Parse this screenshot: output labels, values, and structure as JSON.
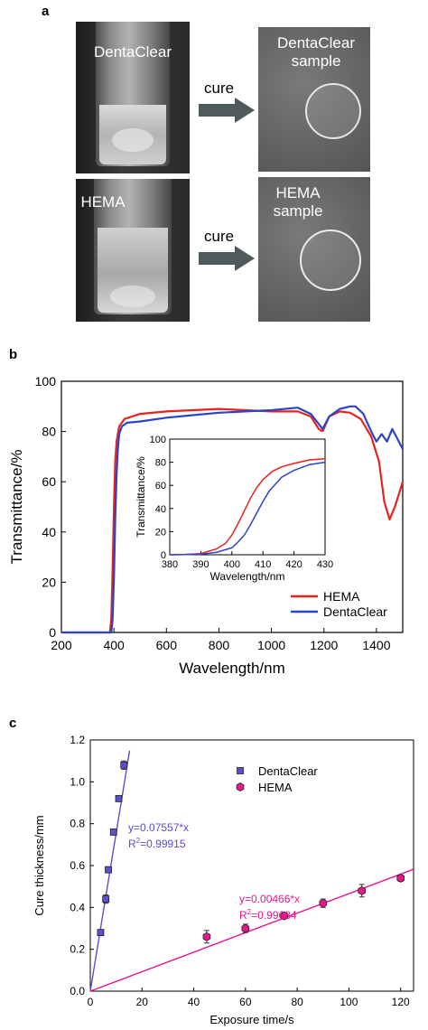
{
  "panel_a": {
    "letter": "a",
    "top_left_label": "DentaClear",
    "top_right_label_line1": "DentaClear",
    "top_right_label_line2": "sample",
    "bottom_left_label": "HEMA",
    "bottom_right_label_line1": "HEMA",
    "bottom_right_label_line2": "sample",
    "arrow_label_top": "cure",
    "arrow_label_bottom": "cure",
    "colors": {
      "arrow": "#4f5a5c",
      "photo_bg_vial": "#2b2b2b",
      "photo_bg_fabric": "#6a6a6a"
    }
  },
  "panel_b": {
    "letter": "b"
  },
  "panel_c": {
    "letter": "c"
  },
  "chart_data": [
    {
      "type": "line",
      "title": "",
      "xlabel": "Wavelength/nm",
      "ylabel": "Transmittance/%",
      "xlim": [
        200,
        1500
      ],
      "ylim": [
        0,
        100
      ],
      "xticks": [
        200,
        400,
        600,
        800,
        1000,
        1200,
        1400
      ],
      "yticks": [
        0,
        20,
        40,
        60,
        80,
        100
      ],
      "legend": "bottom-right",
      "series": [
        {
          "name": "HEMA",
          "color": "#e8231d",
          "x": [
            200,
            385,
            390,
            395,
            400,
            405,
            410,
            420,
            440,
            500,
            600,
            700,
            800,
            900,
            1000,
            1100,
            1150,
            1180,
            1195,
            1220,
            1260,
            1300,
            1340,
            1380,
            1410,
            1430,
            1450,
            1470,
            1500
          ],
          "y": [
            0,
            0,
            5,
            25,
            50,
            68,
            76,
            82,
            85,
            87,
            88,
            88.5,
            89,
            88.5,
            88,
            88,
            86,
            81,
            80,
            86,
            88,
            87.5,
            85,
            78,
            68,
            52,
            45,
            50,
            60
          ]
        },
        {
          "name": "DentaClear",
          "color": "#2a45c9",
          "x": [
            200,
            390,
            395,
            400,
            405,
            410,
            415,
            420,
            430,
            450,
            500,
            600,
            700,
            800,
            900,
            1000,
            1100,
            1150,
            1180,
            1195,
            1220,
            1260,
            1300,
            1320,
            1350,
            1380,
            1400,
            1420,
            1440,
            1460,
            1480,
            1500
          ],
          "y": [
            0,
            0,
            5,
            22,
            45,
            63,
            73,
            79,
            82,
            83.5,
            84,
            85.5,
            86.5,
            87.5,
            88,
            88.5,
            89.5,
            87,
            83,
            81,
            86,
            89,
            90,
            90,
            87,
            80,
            76,
            79,
            76,
            81,
            77,
            73
          ]
        }
      ]
    },
    {
      "type": "line",
      "title": "",
      "xlabel": "Wavelength/nm",
      "ylabel": "Transmittance/%",
      "xlim": [
        380,
        430
      ],
      "ylim": [
        0,
        100
      ],
      "xticks": [
        380,
        390,
        400,
        410,
        420,
        430
      ],
      "yticks": [
        0,
        20,
        40,
        60,
        80,
        100
      ],
      "series": [
        {
          "name": "HEMA",
          "color": "#e8231d",
          "x": [
            380,
            385,
            390,
            395,
            398,
            400,
            402,
            404,
            406,
            408,
            410,
            413,
            416,
            420,
            425,
            430
          ],
          "y": [
            0,
            0.3,
            1,
            5,
            10,
            17,
            27,
            38,
            49,
            58,
            65,
            72,
            76,
            79,
            82,
            83
          ]
        },
        {
          "name": "DentaClear",
          "color": "#2a45c9",
          "x": [
            380,
            385,
            390,
            395,
            400,
            402,
            404,
            406,
            408,
            410,
            412,
            414,
            416,
            420,
            425,
            430
          ],
          "y": [
            0,
            0.2,
            0.5,
            2,
            6,
            11,
            17,
            26,
            36,
            46,
            55,
            61,
            67,
            73,
            78,
            80
          ]
        }
      ]
    },
    {
      "type": "scatter",
      "title": "",
      "xlabel": "Exposure time/s",
      "ylabel": "Cure thickness/mm",
      "xlim": [
        0,
        125
      ],
      "ylim": [
        0.0,
        1.2
      ],
      "xticks": [
        0,
        20,
        40,
        60,
        80,
        100,
        120
      ],
      "yticks": [
        "0.0",
        "0.2",
        "0.4",
        "0.6",
        "0.8",
        "1.0",
        "1.2"
      ],
      "legend": "top-right",
      "series": [
        {
          "name": "DentaClear",
          "color": "#5a4fcf",
          "marker": "square",
          "x": [
            4,
            6,
            7,
            9,
            11,
            13
          ],
          "y": [
            0.28,
            0.44,
            0.58,
            0.76,
            0.92,
            1.08
          ],
          "err": [
            0.01,
            0.02,
            0.01,
            0.01,
            0.01,
            0.02
          ],
          "fit": {
            "slope": 0.07557,
            "x_end": 15.2
          },
          "annotation_line1": "y=0.07557*x",
          "annotation_line2_base": "R",
          "annotation_line2_sup": "2",
          "annotation_line2_rest": "=0.99915"
        },
        {
          "name": "HEMA",
          "color": "#e8188c",
          "marker": "hexagon",
          "x": [
            45,
            60,
            75,
            90,
            105,
            120
          ],
          "y": [
            0.26,
            0.3,
            0.36,
            0.42,
            0.48,
            0.54
          ],
          "err": [
            0.03,
            0.02,
            0.015,
            0.02,
            0.03,
            0.015
          ],
          "fit": {
            "slope": 0.00466,
            "x_end": 125
          },
          "annotation_line1": "y=0.00466*x",
          "annotation_line2_base": "R",
          "annotation_line2_sup": "2",
          "annotation_line2_rest": "=0.99684"
        }
      ]
    }
  ]
}
